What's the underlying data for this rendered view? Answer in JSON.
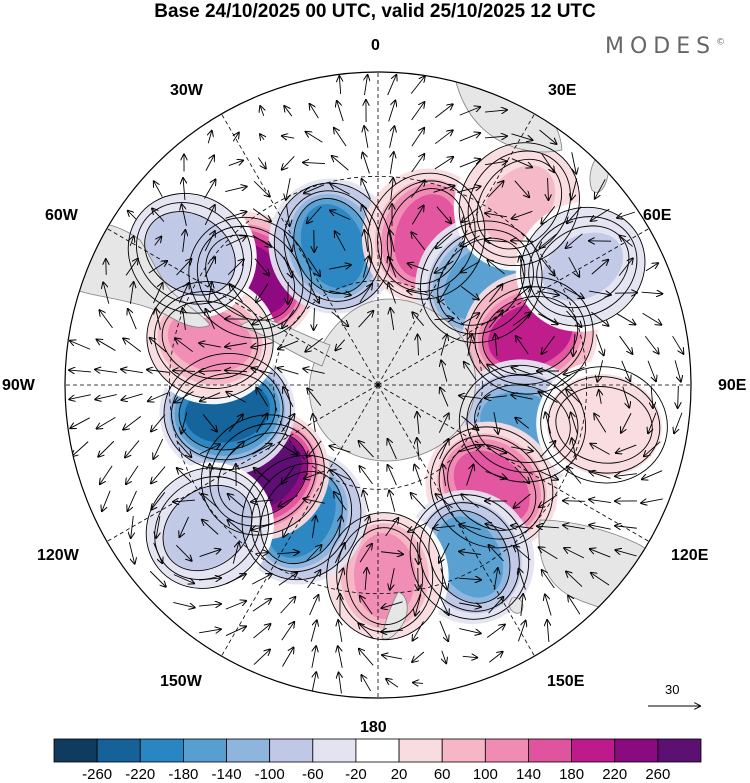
{
  "header": {
    "title": "Base 24/10/2025 00 UTC, valid 25/10/2025 12 UTC",
    "brand": "MODES",
    "brand_mark": "©"
  },
  "map": {
    "projection": "south-polar-stereographic",
    "lon_labels": {
      "top": "0",
      "bottom": "180",
      "right": "90E",
      "left": "90W",
      "e30": "30E",
      "e60": "60E",
      "e120": "120E",
      "e150": "150E",
      "w30": "30W",
      "w60": "60W",
      "w120": "120W",
      "w150": "150W"
    },
    "land_color": "#e6e6e6",
    "coast_color": "#808080",
    "grid_color": "#000000"
  },
  "vector_scale": {
    "label": "30"
  },
  "colorbar": {
    "labels": [
      "-260",
      "-220",
      "-180",
      "-140",
      "-100",
      "-60",
      "-20",
      "20",
      "60",
      "100",
      "140",
      "180",
      "220",
      "260"
    ],
    "colors": [
      "#0e3b5e",
      "#15629a",
      "#2a86c2",
      "#579fd0",
      "#8eb5de",
      "#c0c8e6",
      "#e4e4f1",
      "#ffffff",
      "#f9dcdf",
      "#f6b6c5",
      "#f08bb4",
      "#e0549f",
      "#bd1a8b",
      "#8a0a80",
      "#5b1072"
    ]
  },
  "anomalies": [
    {
      "lon": -50,
      "lat_from_pole": 48,
      "value": 230
    },
    {
      "lon": -18,
      "lat_from_pole": 42,
      "value": -200
    },
    {
      "lon": 18,
      "lat_from_pole": 45,
      "value": 160
    },
    {
      "lon": 45,
      "lat_from_pole": 42,
      "value": -170
    },
    {
      "lon": 72,
      "lat_from_pole": 46,
      "value": 190
    },
    {
      "lon": 105,
      "lat_from_pole": 43,
      "value": -150
    },
    {
      "lon": 132,
      "lat_from_pole": 44,
      "value": 170
    },
    {
      "lon": 152,
      "lat_from_pole": 56,
      "value": -150
    },
    {
      "lon": 178,
      "lat_from_pole": 55,
      "value": 110
    },
    {
      "lon": -150,
      "lat_from_pole": 44,
      "value": -190
    },
    {
      "lon": -128,
      "lat_from_pole": 42,
      "value": 270
    },
    {
      "lon": -100,
      "lat_from_pole": 44,
      "value": -240
    },
    {
      "lon": -75,
      "lat_from_pole": 50,
      "value": 110
    },
    {
      "lon": -130,
      "lat_from_pole": 64,
      "value": -90
    },
    {
      "lon": -55,
      "lat_from_pole": 66,
      "value": -90
    },
    {
      "lon": 38,
      "lat_from_pole": 66,
      "value": 70
    },
    {
      "lon": 60,
      "lat_from_pole": 68,
      "value": -70
    },
    {
      "lon": 100,
      "lat_from_pole": 66,
      "value": 50
    }
  ]
}
